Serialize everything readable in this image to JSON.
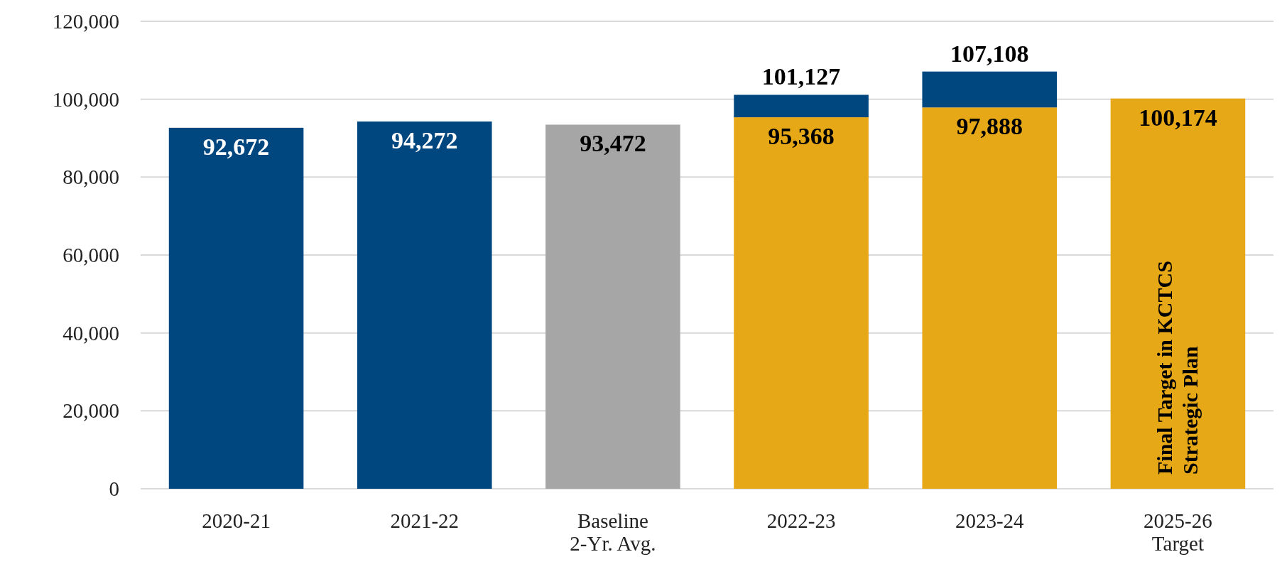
{
  "chart_data": {
    "type": "bar",
    "stacked": true,
    "categories": [
      "2020-21",
      "2021-22",
      "Baseline\n2-Yr. Avg.",
      "2022-23",
      "2023-24",
      "2025-26\nTarget"
    ],
    "series": [
      {
        "colors": [
          "#00467f",
          "#00467f",
          "#a6a6a6",
          "#e6a817",
          "#e6a817",
          "#e6a817"
        ],
        "values": [
          92672,
          94272,
          93472,
          95368,
          97888,
          100174
        ],
        "value_labels": [
          "92,672",
          "94,272",
          "93,472",
          "95,368",
          "97,888",
          "100,174"
        ]
      },
      {
        "color": "#00467f",
        "values": [
          null,
          null,
          null,
          5759,
          9220,
          null
        ]
      }
    ],
    "totals": [
      null,
      null,
      null,
      "101,127",
      "107,108",
      null
    ],
    "ylim": [
      0,
      120000
    ],
    "yticks": [
      {
        "value": 0,
        "label": "0"
      },
      {
        "value": 20000,
        "label": "20,000"
      },
      {
        "value": 40000,
        "label": "40,000"
      },
      {
        "value": 60000,
        "label": "60,000"
      },
      {
        "value": 80000,
        "label": "80,000"
      },
      {
        "value": 100000,
        "label": "100,000"
      },
      {
        "value": 120000,
        "label": "120,000"
      }
    ],
    "grid": "y",
    "annotations": [
      "Final Target in KCTCS\nStrategic Plan"
    ]
  }
}
